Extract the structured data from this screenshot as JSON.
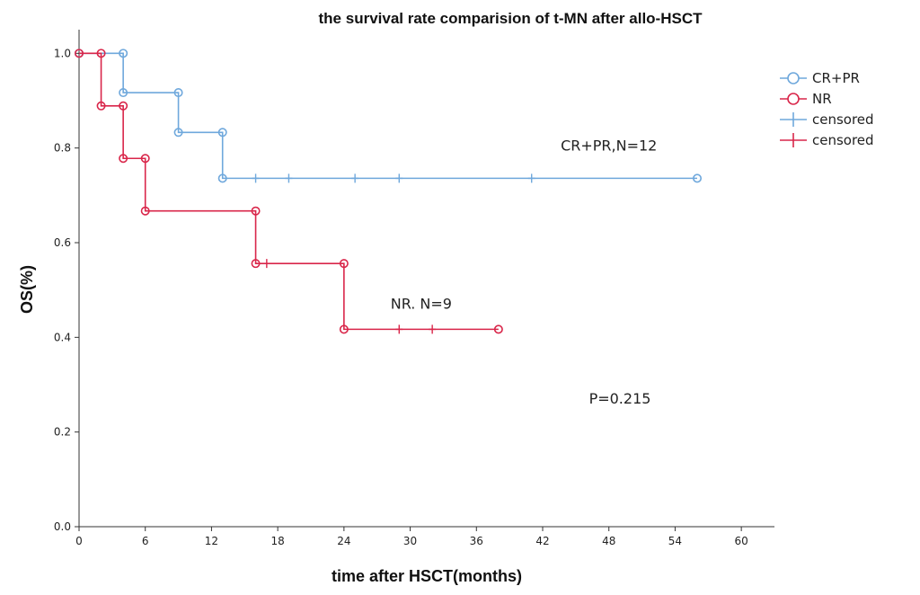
{
  "chart_data": {
    "type": "line",
    "subtype": "kaplan-meier step",
    "title": "the survival rate comparision of t-MN after allo-HSCT",
    "xlabel": "time after HSCT(months)",
    "ylabel": "OS(%)",
    "xlim": [
      0,
      63
    ],
    "ylim": [
      0,
      1.05
    ],
    "x_ticks": [
      "0",
      "6",
      "12",
      "18",
      "24",
      "30",
      "36",
      "42",
      "48",
      "54",
      "60"
    ],
    "y_ticks": [
      "0.0",
      "0.2",
      "0.4",
      "0.6",
      "0.8",
      "1.0"
    ],
    "grid": false,
    "legend_position": "top-right",
    "legend": [
      {
        "label": "CR+PR",
        "marker": "circle",
        "series": 0
      },
      {
        "label": "NR",
        "marker": "circle",
        "series": 1
      },
      {
        "label": "censored",
        "marker": "plus",
        "series": 0
      },
      {
        "label": "censored",
        "marker": "plus",
        "series": 1
      }
    ],
    "series": [
      {
        "name": "CR+PR",
        "color": "#6fa8dc",
        "steps": [
          [
            0,
            1.0
          ],
          [
            4,
            0.917
          ],
          [
            9,
            0.833
          ],
          [
            13,
            0.736
          ],
          [
            56,
            0.736
          ]
        ],
        "event_markers": [
          [
            0,
            1.0
          ],
          [
            4,
            1.0
          ],
          [
            4,
            0.917
          ],
          [
            9,
            0.917
          ],
          [
            9,
            0.833
          ],
          [
            13,
            0.833
          ],
          [
            13,
            0.736
          ],
          [
            56,
            0.736
          ]
        ],
        "censored": [
          [
            16,
            0.736
          ],
          [
            19,
            0.736
          ],
          [
            25,
            0.736
          ],
          [
            29,
            0.736
          ],
          [
            41,
            0.736
          ]
        ]
      },
      {
        "name": "NR",
        "color": "#d9264a",
        "steps": [
          [
            0,
            1.0
          ],
          [
            2,
            0.889
          ],
          [
            4,
            0.778
          ],
          [
            6,
            0.667
          ],
          [
            16,
            0.556
          ],
          [
            24,
            0.417
          ],
          [
            38,
            0.417
          ]
        ],
        "event_markers": [
          [
            0,
            1.0
          ],
          [
            2,
            1.0
          ],
          [
            2,
            0.889
          ],
          [
            4,
            0.889
          ],
          [
            4,
            0.778
          ],
          [
            6,
            0.778
          ],
          [
            6,
            0.667
          ],
          [
            16,
            0.667
          ],
          [
            16,
            0.556
          ],
          [
            24,
            0.556
          ],
          [
            24,
            0.417
          ],
          [
            38,
            0.417
          ]
        ],
        "censored": [
          [
            17,
            0.556
          ],
          [
            29,
            0.417
          ],
          [
            32,
            0.417
          ]
        ]
      }
    ],
    "annotations": [
      {
        "text": "CR+PR,N=12",
        "x": 48,
        "y": 0.795
      },
      {
        "text": "NR. N=9",
        "x": 31,
        "y": 0.46
      },
      {
        "text": "P=0.215",
        "x": 49,
        "y": 0.26
      }
    ]
  }
}
